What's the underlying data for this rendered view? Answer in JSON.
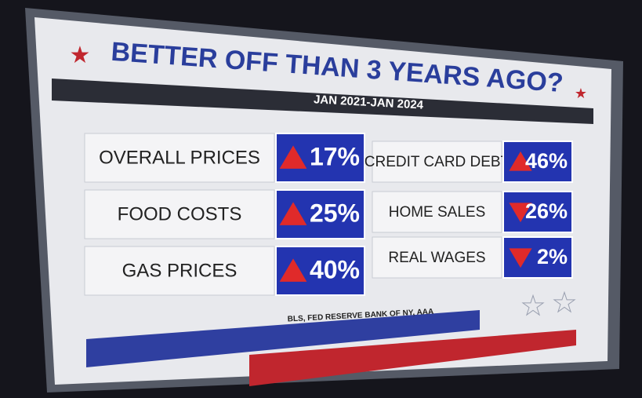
{
  "header": {
    "title": "BETTER OFF THAN 3 YEARS AGO?",
    "subtitle": "JAN 2021-JAN 2024"
  },
  "items": [
    {
      "label": "OVERALL PRICES",
      "value": "17%",
      "direction": "up"
    },
    {
      "label": "FOOD COSTS",
      "value": "25%",
      "direction": "up"
    },
    {
      "label": "GAS PRICES",
      "value": "40%",
      "direction": "up"
    },
    {
      "label": "CREDIT CARD DEBT",
      "value": "46%",
      "direction": "up"
    },
    {
      "label": "HOME SALES",
      "value": "26%",
      "direction": "down"
    },
    {
      "label": "REAL WAGES",
      "value": "2%",
      "direction": "down"
    }
  ],
  "source": "BLS, FED RESERVE BANK OF NY, AAA"
}
